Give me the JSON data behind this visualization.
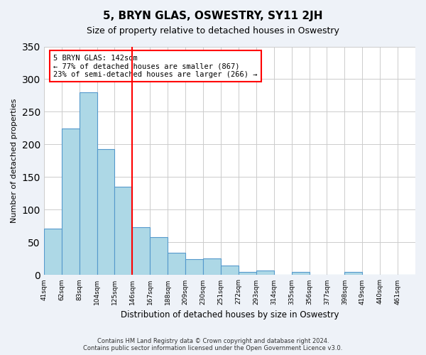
{
  "title": "5, BRYN GLAS, OSWESTRY, SY11 2JH",
  "subtitle": "Size of property relative to detached houses in Oswestry",
  "xlabel": "Distribution of detached houses by size in Oswestry",
  "ylabel": "Number of detached properties",
  "footer_line1": "Contains HM Land Registry data © Crown copyright and database right 2024.",
  "footer_line2": "Contains public sector information licensed under the Open Government Licence v3.0.",
  "bar_labels": [
    "41sqm",
    "62sqm",
    "83sqm",
    "104sqm",
    "125sqm",
    "146sqm",
    "167sqm",
    "188sqm",
    "209sqm",
    "230sqm",
    "251sqm",
    "272sqm",
    "293sqm",
    "314sqm",
    "335sqm",
    "356sqm",
    "377sqm",
    "398sqm",
    "419sqm",
    "440sqm",
    "461sqm"
  ],
  "bar_values": [
    71,
    224,
    280,
    193,
    135,
    73,
    58,
    34,
    24,
    25,
    15,
    5,
    7,
    0,
    5,
    0,
    0,
    5,
    0,
    1,
    0
  ],
  "bar_color": "#add8e6",
  "bar_edge_color": "#5599cc",
  "annotation_title": "5 BRYN GLAS: 142sqm",
  "annotation_line1": "← 77% of detached houses are smaller (867)",
  "annotation_line2": "23% of semi-detached houses are larger (266) →",
  "vline_x": 5.0,
  "vline_color": "red",
  "annotation_box_color": "white",
  "annotation_box_edge_color": "red",
  "ylim": [
    0,
    350
  ],
  "yticks": [
    0,
    50,
    100,
    150,
    200,
    250,
    300,
    350
  ],
  "background_color": "#eef2f8",
  "plot_bg_color": "#ffffff",
  "grid_color": "#cccccc"
}
